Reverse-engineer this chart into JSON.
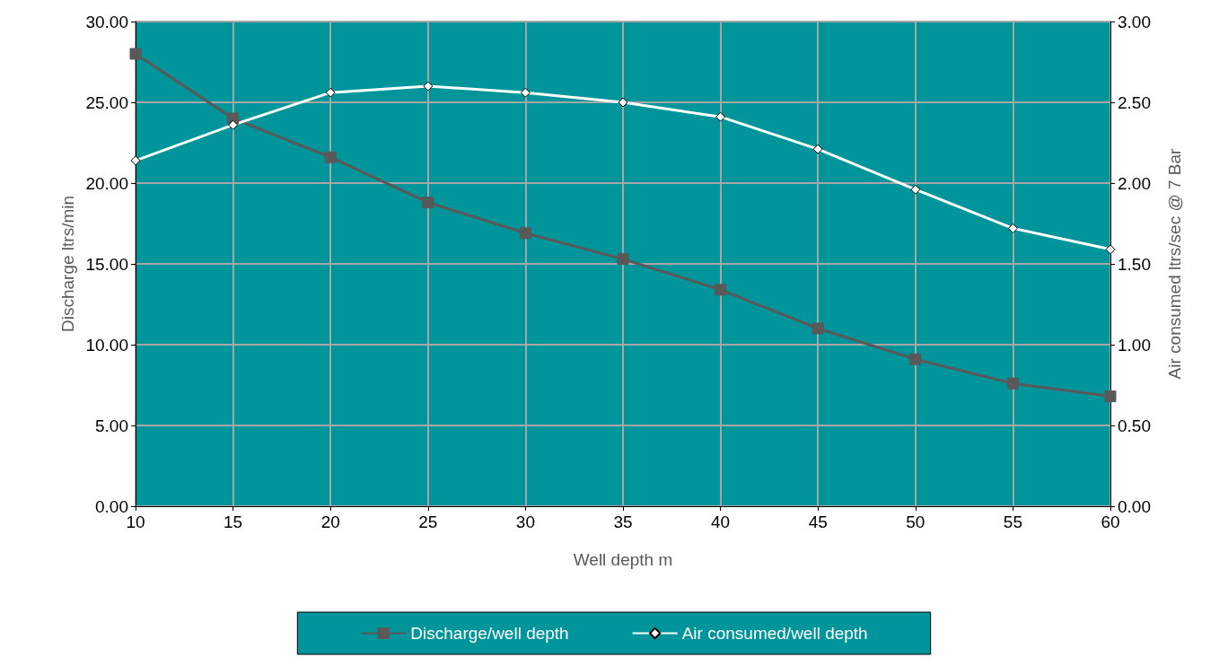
{
  "chart_data": {
    "type": "line",
    "xlabel": "Well depth m",
    "ylabel": "Discharge ltrs/min",
    "y2label": "Air consumed ltrs/sec @ 7 Bar",
    "x": [
      10,
      15,
      20,
      25,
      30,
      35,
      40,
      45,
      50,
      55,
      60
    ],
    "xlim": [
      10,
      60
    ],
    "xticks": [
      10,
      15,
      20,
      25,
      30,
      35,
      40,
      45,
      50,
      55,
      60
    ],
    "ylim": [
      0,
      30
    ],
    "yticks": [
      {
        "value": 0,
        "label": "0.00"
      },
      {
        "value": 5,
        "label": "5.00"
      },
      {
        "value": 10,
        "label": "10.00"
      },
      {
        "value": 15,
        "label": "15.00"
      },
      {
        "value": 20,
        "label": "20.00"
      },
      {
        "value": 25,
        "label": "25.00"
      },
      {
        "value": 30,
        "label": "30.00"
      }
    ],
    "y2lim": [
      0,
      3
    ],
    "y2ticks": [
      {
        "value": 0,
        "label": "0.00"
      },
      {
        "value": 0.5,
        "label": "0.50"
      },
      {
        "value": 1,
        "label": "1.00"
      },
      {
        "value": 1.5,
        "label": "1.50"
      },
      {
        "value": 2,
        "label": "2.00"
      },
      {
        "value": 2.5,
        "label": "2.50"
      },
      {
        "value": 3,
        "label": "3.00"
      }
    ],
    "grid": true,
    "legend": "bottom",
    "series": [
      {
        "name": "Discharge/well depth",
        "color": "#595959",
        "marker": "square",
        "values": [
          28.0,
          24.0,
          21.6,
          18.8,
          16.9,
          15.3,
          13.4,
          11.0,
          9.1,
          7.6,
          6.8
        ]
      },
      {
        "name": "Air consumed/well depth",
        "color": "#ffffff",
        "marker": "diamond",
        "axis": "y2",
        "values": [
          2.14,
          2.36,
          2.56,
          2.6,
          2.56,
          2.5,
          2.41,
          2.21,
          1.96,
          1.72,
          1.59
        ]
      }
    ]
  }
}
